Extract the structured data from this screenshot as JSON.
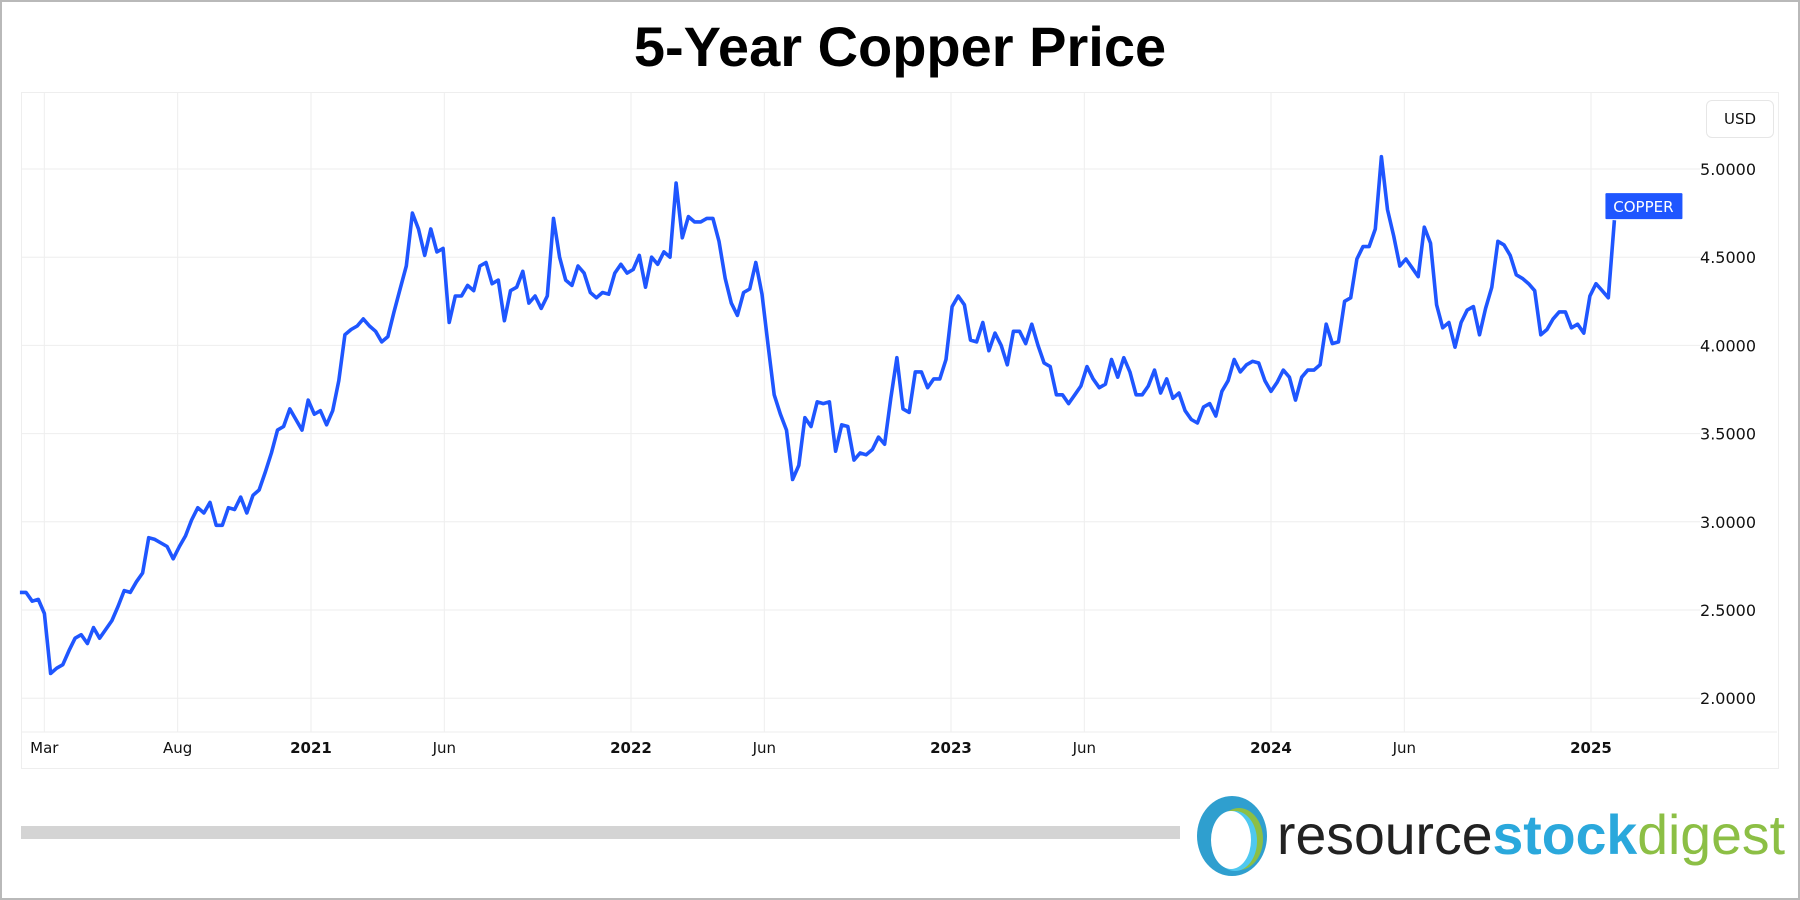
{
  "chart_data": {
    "type": "line",
    "title": "5-Year Copper Price",
    "currency_button": "USD",
    "series_label": "COPPER",
    "line_color": "#1f56ff",
    "xlabel": "",
    "ylabel": "",
    "ylim": [
      1.75,
      5.4
    ],
    "y_ticks": [
      "2.0000",
      "2.5000",
      "3.0000",
      "3.5000",
      "4.0000",
      "4.5000",
      "5.0000"
    ],
    "x_ticks": [
      {
        "label": "Mar",
        "date": "2020-03",
        "major": false
      },
      {
        "label": "Aug",
        "date": "2020-08",
        "major": false
      },
      {
        "label": "2021",
        "date": "2021-01",
        "major": true
      },
      {
        "label": "Jun",
        "date": "2021-06",
        "major": false
      },
      {
        "label": "2022",
        "date": "2022-01",
        "major": true
      },
      {
        "label": "Jun",
        "date": "2022-06",
        "major": false
      },
      {
        "label": "2023",
        "date": "2023-01",
        "major": true
      },
      {
        "label": "Jun",
        "date": "2023-06",
        "major": false
      },
      {
        "label": "2024",
        "date": "2024-01",
        "major": true
      },
      {
        "label": "Jun",
        "date": "2024-06",
        "major": false
      },
      {
        "label": "2025",
        "date": "2025-01",
        "major": true
      }
    ],
    "start_date": "2020-02-03",
    "interval_days": 7,
    "values": [
      2.6,
      2.6,
      2.55,
      2.56,
      2.48,
      2.14,
      2.17,
      2.19,
      2.27,
      2.34,
      2.36,
      2.31,
      2.4,
      2.34,
      2.39,
      2.44,
      2.52,
      2.61,
      2.6,
      2.66,
      2.71,
      2.91,
      2.9,
      2.88,
      2.86,
      2.79,
      2.86,
      2.92,
      3.01,
      3.08,
      3.05,
      3.11,
      2.98,
      2.98,
      3.08,
      3.07,
      3.14,
      3.05,
      3.15,
      3.18,
      3.28,
      3.39,
      3.52,
      3.54,
      3.64,
      3.58,
      3.52,
      3.69,
      3.61,
      3.63,
      3.55,
      3.63,
      3.8,
      4.06,
      4.09,
      4.11,
      4.15,
      4.11,
      4.08,
      4.02,
      4.05,
      4.19,
      4.32,
      4.45,
      4.75,
      4.66,
      4.51,
      4.66,
      4.53,
      4.55,
      4.13,
      4.28,
      4.28,
      4.34,
      4.31,
      4.45,
      4.47,
      4.35,
      4.37,
      4.14,
      4.31,
      4.33,
      4.42,
      4.24,
      4.28,
      4.21,
      4.28,
      4.72,
      4.5,
      4.37,
      4.34,
      4.45,
      4.41,
      4.3,
      4.27,
      4.3,
      4.29,
      4.41,
      4.46,
      4.41,
      4.43,
      4.51,
      4.33,
      4.5,
      4.46,
      4.53,
      4.5,
      4.92,
      4.61,
      4.73,
      4.7,
      4.7,
      4.72,
      4.72,
      4.59,
      4.38,
      4.24,
      4.17,
      4.3,
      4.32,
      4.47,
      4.29,
      4.0,
      3.72,
      3.61,
      3.52,
      3.24,
      3.32,
      3.59,
      3.54,
      3.68,
      3.67,
      3.68,
      3.4,
      3.55,
      3.54,
      3.35,
      3.39,
      3.38,
      3.41,
      3.48,
      3.44,
      3.7,
      3.93,
      3.64,
      3.62,
      3.85,
      3.85,
      3.76,
      3.81,
      3.81,
      3.92,
      4.22,
      4.28,
      4.23,
      4.03,
      4.02,
      4.13,
      3.97,
      4.07,
      4.0,
      3.89,
      4.08,
      4.08,
      4.01,
      4.12,
      4.0,
      3.9,
      3.88,
      3.72,
      3.72,
      3.67,
      3.72,
      3.77,
      3.88,
      3.81,
      3.76,
      3.78,
      3.92,
      3.82,
      3.93,
      3.85,
      3.72,
      3.72,
      3.77,
      3.86,
      3.73,
      3.81,
      3.7,
      3.73,
      3.63,
      3.58,
      3.56,
      3.65,
      3.67,
      3.6,
      3.74,
      3.8,
      3.92,
      3.85,
      3.89,
      3.91,
      3.9,
      3.8,
      3.74,
      3.79,
      3.86,
      3.82,
      3.69,
      3.82,
      3.86,
      3.86,
      3.89,
      4.12,
      4.01,
      4.02,
      4.25,
      4.27,
      4.49,
      4.56,
      4.56,
      4.66,
      5.07,
      4.77,
      4.62,
      4.45,
      4.49,
      4.44,
      4.39,
      4.67,
      4.58,
      4.23,
      4.1,
      4.13,
      3.99,
      4.13,
      4.2,
      4.22,
      4.06,
      4.21,
      4.33,
      4.59,
      4.57,
      4.51,
      4.4,
      4.38,
      4.35,
      4.31,
      4.06,
      4.09,
      4.15,
      4.19,
      4.19,
      4.1,
      4.12,
      4.07,
      4.28,
      4.35,
      4.31,
      4.27,
      4.71
    ]
  },
  "logo": {
    "part1": "resource",
    "part2": "stock",
    "part3": "digest",
    "colors": [
      "#222222",
      "#2aa8dc",
      "#8cbf45"
    ]
  }
}
